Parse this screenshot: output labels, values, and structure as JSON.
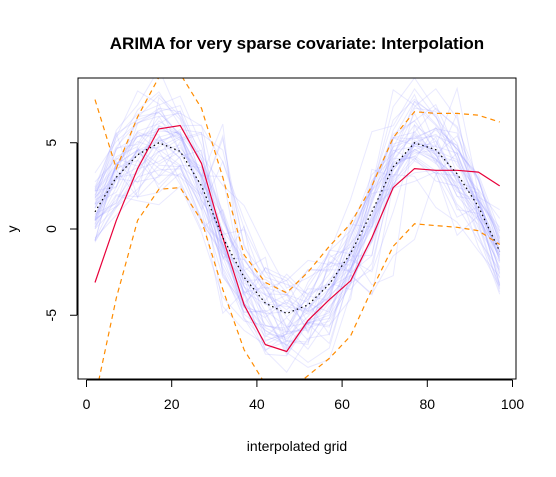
{
  "chart_data": {
    "type": "line",
    "title": "ARIMA for very sparse covariate: Interpolation",
    "xlabel": "interpolated grid",
    "ylabel": "y",
    "xlim": [
      0,
      100
    ],
    "ylim": [
      -8.6,
      8.6
    ],
    "x_ticks": [
      0,
      20,
      40,
      60,
      80,
      100
    ],
    "y_ticks": [
      -5,
      0,
      5
    ],
    "grid": false,
    "x": [
      2,
      7,
      12,
      17,
      22,
      27,
      32,
      37,
      42,
      47,
      52,
      57,
      62,
      67,
      72,
      77,
      82,
      87,
      92,
      97
    ],
    "series": [
      {
        "style": "solid",
        "color": "#e8003a",
        "values": [
          -3.1,
          0.5,
          3.5,
          5.8,
          6.0,
          3.8,
          -0.5,
          -4.4,
          -6.7,
          -7.1,
          -5.3,
          -4.1,
          -3.0,
          -0.5,
          2.4,
          3.5,
          3.4,
          3.4,
          3.3,
          2.5
        ]
      },
      {
        "style": "dotted",
        "color": "#000000",
        "values": [
          1.0,
          3.0,
          4.3,
          5.0,
          4.5,
          2.5,
          -0.5,
          -2.8,
          -4.3,
          -4.9,
          -4.4,
          -3.2,
          -1.4,
          1.0,
          3.6,
          5.0,
          4.6,
          3.2,
          1.3,
          -1.3
        ]
      },
      {
        "style": "dashed",
        "color": "#ff8c00",
        "values": [
          7.5,
          3.5,
          6.5,
          8.8,
          9.0,
          7.0,
          3.0,
          -1.5,
          -3.1,
          -3.7,
          -2.5,
          -1.0,
          0.3,
          2.5,
          5.3,
          6.8,
          6.7,
          6.7,
          6.6,
          6.2
        ]
      },
      {
        "style": "dashed",
        "color": "#ff8c00",
        "values": [
          -9.8,
          -4.0,
          0.5,
          2.3,
          2.4,
          0.5,
          -3.5,
          -7.0,
          -9.0,
          -9.5,
          -8.5,
          -7.5,
          -6.2,
          -3.5,
          -1.0,
          0.3,
          0.2,
          0.1,
          -0.1,
          -0.9
        ]
      }
    ],
    "samples": {
      "color": "#9999ff",
      "count": 45,
      "role": "faint sample paths"
    }
  }
}
